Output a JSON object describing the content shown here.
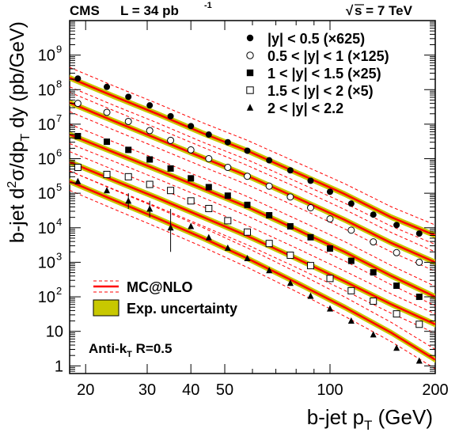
{
  "header": {
    "experiment": "CMS",
    "lumi_prefix": "L = 34 pb",
    "lumi_exp": "-1",
    "energy_sqrt": "√",
    "energy_rest": "s = 7 TeV"
  },
  "footnote": {
    "algo_prefix": "Anti-k",
    "algo_sub": "T",
    "algo_suffix": " R=0.5"
  },
  "chart_data": {
    "type": "scatter",
    "title": "",
    "xlabel": {
      "a": "b-jet p",
      "sub": "T",
      "b": " (GeV)"
    },
    "ylabel": {
      "a": "b-jet d",
      "sup": "2",
      "b": "σ/dp",
      "sub": "T",
      "c": " dy (pb/GeV)"
    },
    "xscale": "log",
    "yscale": "log",
    "xlim": [
      18,
      200
    ],
    "ylim": [
      0.6,
      10000000000.0
    ],
    "x_ticks": [
      "20",
      "30",
      "40",
      "50",
      "100",
      "200"
    ],
    "y_ticks": [
      {
        "base": "1",
        "exp": ""
      },
      {
        "base": "10",
        "exp": ""
      },
      {
        "base": "10",
        "exp": "2"
      },
      {
        "base": "10",
        "exp": "3"
      },
      {
        "base": "10",
        "exp": "4"
      },
      {
        "base": "10",
        "exp": "5"
      },
      {
        "base": "10",
        "exp": "6"
      },
      {
        "base": "10",
        "exp": "7"
      },
      {
        "base": "10",
        "exp": "8"
      },
      {
        "base": "10",
        "exp": "9"
      }
    ],
    "legend_position": "top-right",
    "series": [
      {
        "name": "|y| < 0.5 (×625)",
        "marker": "filled-circle",
        "x": [
          19,
          23,
          26.5,
          30.5,
          35,
          40,
          45,
          51,
          58,
          67,
          77,
          88,
          100,
          115,
          133,
          155,
          180
        ],
        "y": [
          210000000.0,
          120000000.0,
          62000000.0,
          35000000.0,
          17000000.0,
          8800000.0,
          5000000.0,
          3000000.0,
          1700000.0,
          900000.0,
          460000.0,
          230000.0,
          110000.0,
          50000.0,
          24000.0,
          12000.0,
          6800.0
        ],
        "curve_y": [
          220000000.0,
          65000000.0,
          20000000.0,
          5600000.0,
          1700000.0,
          400000.0,
          95000.0,
          20000.0,
          6000.0
        ]
      },
      {
        "name": "0.5 < |y| < 1 (×125)",
        "marker": "open-circle",
        "x": [
          19,
          23,
          26.5,
          30.5,
          35,
          40,
          45,
          51,
          58,
          67,
          77,
          88,
          100,
          115,
          133,
          155,
          180
        ],
        "y": [
          40000000.0,
          22000000.0,
          12000000.0,
          6500000.0,
          3400000.0,
          1800000.0,
          1000000.0,
          560000.0,
          310000.0,
          160000.0,
          78000.0,
          38000.0,
          18000.0,
          8500.0,
          3900.0,
          1900.0,
          1000.0
        ],
        "curve_y": [
          42000000.0,
          12500000.0,
          3800000.0,
          1100000.0,
          320000.0,
          75000.0,
          17000.0,
          3600.0,
          1000.0
        ]
      },
      {
        "name": "1 < |y| < 1.5 (×25)",
        "marker": "filled-square",
        "x": [
          19,
          23,
          26.5,
          30.5,
          35,
          40,
          45,
          51,
          58,
          67,
          77,
          88,
          100,
          115,
          133,
          155,
          180
        ],
        "y": [
          4500000.0,
          3100000.0,
          1800000.0,
          950000.0,
          520000.0,
          270000.0,
          150000.0,
          85000.0,
          46000.0,
          23000.0,
          11000.0,
          5300.0,
          2500.0,
          1100.0,
          510.0,
          210.0,
          100.0
        ],
        "curve_y": [
          5000000.0,
          1550000.0,
          480000.0,
          140000.0,
          40000.0,
          9000.0,
          2000.0,
          400.0,
          100.0
        ]
      },
      {
        "name": "1.5 < |y| < 2 (×5)",
        "marker": "open-square",
        "x": [
          19,
          23,
          26.5,
          30.5,
          35,
          40,
          45,
          51,
          58,
          67,
          77,
          88,
          100,
          115,
          133,
          155,
          180
        ],
        "y": [
          560000.0,
          350000.0,
          300000.0,
          180000.0,
          120000.0,
          60000.0,
          36000.0,
          16000.0,
          7500.0,
          3500.0,
          1600.0,
          800.0,
          340.0,
          150.0,
          75.0,
          32.0,
          16.0
        ],
        "curve_y": [
          800000.0,
          240000.0,
          74000.0,
          21000.0,
          5800.0,
          1300.0,
          280.0,
          60.0,
          16.0
        ]
      },
      {
        "name": "2 < |y| < 2.2",
        "marker": "filled-triangle",
        "x": [
          19,
          23,
          26.5,
          30.5,
          35,
          40,
          45,
          51,
          58,
          67,
          77,
          88,
          100,
          115,
          133,
          155,
          180
        ],
        "y": [
          220000.0,
          120000.0,
          60000.0,
          35000.0,
          10000.0,
          11000.0,
          5200.0,
          2600.0,
          1300.0,
          580.0,
          250.0,
          105.0,
          45.0,
          20.0,
          8.0,
          3.3,
          1.4
        ],
        "curve_y": [
          220000.0,
          64000.0,
          19000.0,
          5200.0,
          1300.0,
          260.0,
          50.0,
          9.0,
          1.5
        ]
      }
    ],
    "curve_x": [
      18,
      24,
      32,
      43,
      58,
      80,
      110,
      150,
      200
    ],
    "theory": {
      "name": "MC@NLO",
      "color": "#ff0000",
      "band_relative_error": [
        0.55,
        2.0
      ]
    },
    "exp_uncertainty": {
      "name": "Exp. uncertainty",
      "color": "#c8c800",
      "relative_error": 0.22
    },
    "error_bars": [
      {
        "series": 4,
        "point": 4,
        "y_low": 2000.0,
        "y_high": 35000.0
      },
      {
        "series": 4,
        "point": 2,
        "y_low": 35000.0,
        "y_high": 100000.0
      },
      {
        "series": 4,
        "point": 3,
        "y_low": 20000.0,
        "y_high": 60000.0
      }
    ],
    "grid": false
  }
}
